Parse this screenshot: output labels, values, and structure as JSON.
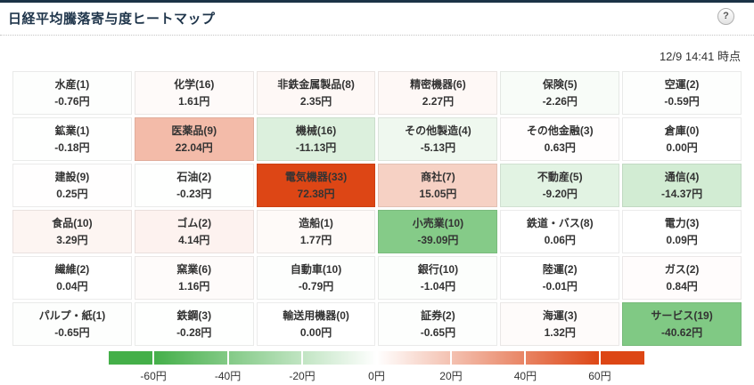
{
  "header": {
    "title": "日経平均騰落寄与度ヒートマップ",
    "help_icon": "?",
    "timestamp": "12/9 14:41 時点"
  },
  "colors": {
    "top_border": "#1b3246",
    "title_text": "#1e344a",
    "cell_text": "#333333",
    "scale_negative": "#44af49",
    "scale_neutral": "#ffffff",
    "scale_positive": "#dd4615"
  },
  "chart_data": {
    "type": "heatmap",
    "title": "日経平均騰落寄与度ヒートマップ",
    "as_of": "12/9 14:41 時点",
    "unit": "円",
    "grid": {
      "rows": 6,
      "cols": 6
    },
    "color_scale": {
      "clamp_min": -60,
      "clamp_max": 60,
      "bar_range_min": -72,
      "bar_range_max": 72,
      "negative_color": "#44af49",
      "neutral_color": "#ffffff",
      "positive_color": "#dd4615"
    },
    "cells": [
      {
        "label": "水産(1)",
        "value": -0.76,
        "display": "-0.76円"
      },
      {
        "label": "化学(16)",
        "value": 1.61,
        "display": "1.61円"
      },
      {
        "label": "非鉄金属製品(8)",
        "value": 2.35,
        "display": "2.35円"
      },
      {
        "label": "精密機器(6)",
        "value": 2.27,
        "display": "2.27円"
      },
      {
        "label": "保険(5)",
        "value": -2.26,
        "display": "-2.26円"
      },
      {
        "label": "空運(2)",
        "value": -0.59,
        "display": "-0.59円"
      },
      {
        "label": "鉱業(1)",
        "value": -0.18,
        "display": "-0.18円"
      },
      {
        "label": "医薬品(9)",
        "value": 22.04,
        "display": "22.04円"
      },
      {
        "label": "機械(16)",
        "value": -11.13,
        "display": "-11.13円"
      },
      {
        "label": "その他製造(4)",
        "value": -5.13,
        "display": "-5.13円"
      },
      {
        "label": "その他金融(3)",
        "value": 0.63,
        "display": "0.63円"
      },
      {
        "label": "倉庫(0)",
        "value": 0.0,
        "display": "0.00円"
      },
      {
        "label": "建設(9)",
        "value": 0.25,
        "display": "0.25円"
      },
      {
        "label": "石油(2)",
        "value": -0.23,
        "display": "-0.23円"
      },
      {
        "label": "電気機器(33)",
        "value": 72.38,
        "display": "72.38円"
      },
      {
        "label": "商社(7)",
        "value": 15.05,
        "display": "15.05円"
      },
      {
        "label": "不動産(5)",
        "value": -9.2,
        "display": "-9.20円"
      },
      {
        "label": "通信(4)",
        "value": -14.37,
        "display": "-14.37円"
      },
      {
        "label": "食品(10)",
        "value": 3.29,
        "display": "3.29円"
      },
      {
        "label": "ゴム(2)",
        "value": 4.14,
        "display": "4.14円"
      },
      {
        "label": "造船(1)",
        "value": 1.77,
        "display": "1.77円"
      },
      {
        "label": "小売業(10)",
        "value": -39.09,
        "display": "-39.09円"
      },
      {
        "label": "鉄道・バス(8)",
        "value": 0.06,
        "display": "0.06円"
      },
      {
        "label": "電力(3)",
        "value": 0.09,
        "display": "0.09円"
      },
      {
        "label": "繊維(2)",
        "value": 0.04,
        "display": "0.04円"
      },
      {
        "label": "窯業(6)",
        "value": 1.16,
        "display": "1.16円"
      },
      {
        "label": "自動車(10)",
        "value": -0.79,
        "display": "-0.79円"
      },
      {
        "label": "銀行(10)",
        "value": -1.04,
        "display": "-1.04円"
      },
      {
        "label": "陸運(2)",
        "value": -0.01,
        "display": "-0.01円"
      },
      {
        "label": "ガス(2)",
        "value": 0.84,
        "display": "0.84円"
      },
      {
        "label": "パルプ・紙(1)",
        "value": -0.65,
        "display": "-0.65円"
      },
      {
        "label": "鉄鋼(3)",
        "value": -0.28,
        "display": "-0.28円"
      },
      {
        "label": "輸送用機器(0)",
        "value": 0.0,
        "display": "0.00円"
      },
      {
        "label": "証券(2)",
        "value": -0.65,
        "display": "-0.65円"
      },
      {
        "label": "海運(3)",
        "value": 1.32,
        "display": "1.32円"
      },
      {
        "label": "サービス(19)",
        "value": -40.62,
        "display": "-40.62円"
      }
    ],
    "legend_ticks": [
      {
        "value": -60,
        "label": "-60円"
      },
      {
        "value": -40,
        "label": "-40円"
      },
      {
        "value": -20,
        "label": "-20円"
      },
      {
        "value": 0,
        "label": "0円"
      },
      {
        "value": 20,
        "label": "20円"
      },
      {
        "value": 40,
        "label": "40円"
      },
      {
        "value": 60,
        "label": "60円"
      }
    ]
  }
}
